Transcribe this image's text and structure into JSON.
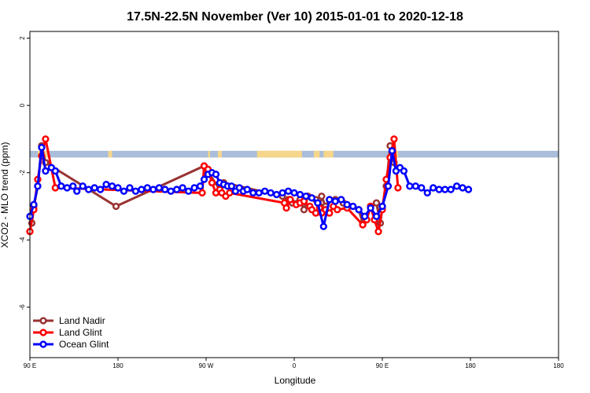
{
  "chart_data": {
    "type": "line",
    "title": "17.5N-22.5N November (Ver 10)   2015-01-01 to 2020-12-18",
    "xlabel": "Longitude",
    "ylabel": "XCO2 - MLO trend (ppm)",
    "xlim": [
      -90,
      180
    ],
    "ylim": [
      -7.5,
      2.2
    ],
    "x_ticks": [
      {
        "value": -90,
        "label": "90 E"
      },
      {
        "value": -45,
        "label": "180"
      },
      {
        "value": 0,
        "label": "90 W"
      },
      {
        "value": 45,
        "label": "0"
      },
      {
        "value": 90,
        "label": "90 E"
      },
      {
        "value": 135,
        "label": "180"
      }
    ],
    "y_ticks": [
      2,
      0,
      -2,
      -4,
      -6
    ],
    "legend_position": "bottom-left",
    "land_mask_band": {
      "y_range": [
        -1.55,
        -1.35
      ],
      "ocean_color": "#aabdda",
      "land_color": "#f5d68a",
      "land_x_ranges": [
        [
          -86,
          -80
        ],
        [
          -50,
          -48
        ],
        [
          1,
          2
        ],
        [
          6,
          8
        ],
        [
          26,
          49
        ],
        [
          55,
          58
        ],
        [
          60,
          65
        ],
        [
          94,
          98
        ]
      ]
    },
    "series": [
      {
        "name": "Land Nadir",
        "color": "#993333",
        "points": [
          [
            -89,
            -3.5
          ],
          [
            -88,
            -3.0
          ],
          [
            -86,
            -2.4
          ],
          [
            -84,
            -1.2
          ],
          [
            -82,
            -1.7
          ],
          [
            -46,
            -3.0
          ],
          [
            -1,
            -1.8
          ],
          [
            0,
            -1.9
          ],
          [
            7,
            -2.5
          ],
          [
            9,
            -2.3
          ],
          [
            39,
            -2.7
          ],
          [
            42,
            -2.8
          ],
          [
            44,
            -2.9
          ],
          [
            48,
            -2.8
          ],
          [
            50,
            -3.1
          ],
          [
            52,
            -2.7
          ],
          [
            56,
            -2.8
          ],
          [
            58,
            -3.0
          ],
          [
            59,
            -2.7
          ],
          [
            61,
            -3.0
          ],
          [
            63,
            -2.8
          ],
          [
            66,
            -2.8
          ],
          [
            70,
            -2.9
          ],
          [
            75,
            -3.0
          ],
          [
            78,
            -3.1
          ],
          [
            80,
            -3.5
          ],
          [
            84,
            -3.0
          ],
          [
            87,
            -2.9
          ],
          [
            89,
            -3.5
          ],
          [
            90,
            -3.0
          ],
          [
            92,
            -2.4
          ],
          [
            94,
            -1.2
          ],
          [
            96,
            -1.7
          ]
        ]
      },
      {
        "name": "Land Glint",
        "color": "#ff0000",
        "points": [
          [
            -90,
            -3.75
          ],
          [
            -88,
            -3.1
          ],
          [
            -86,
            -2.2
          ],
          [
            -84,
            -1.5
          ],
          [
            -82,
            -1.0
          ],
          [
            -77,
            -2.45
          ],
          [
            -2,
            -2.6
          ],
          [
            -1,
            -1.8
          ],
          [
            1,
            -1.9
          ],
          [
            3,
            -2.3
          ],
          [
            5,
            -2.6
          ],
          [
            7,
            -2.5
          ],
          [
            8,
            -2.6
          ],
          [
            10,
            -2.7
          ],
          [
            12,
            -2.6
          ],
          [
            40,
            -2.9
          ],
          [
            41,
            -3.05
          ],
          [
            43,
            -2.8
          ],
          [
            46,
            -2.95
          ],
          [
            48,
            -2.9
          ],
          [
            50,
            -2.85
          ],
          [
            53,
            -3.0
          ],
          [
            54,
            -3.1
          ],
          [
            56,
            -3.2
          ],
          [
            58,
            -3.05
          ],
          [
            59,
            -3.2
          ],
          [
            61,
            -3.1
          ],
          [
            63,
            -3.2
          ],
          [
            65,
            -3.0
          ],
          [
            67,
            -3.1
          ],
          [
            72,
            -3.05
          ],
          [
            80,
            -3.55
          ],
          [
            82,
            -3.4
          ],
          [
            84,
            -3.0
          ],
          [
            86,
            -3.4
          ],
          [
            88,
            -3.75
          ],
          [
            90,
            -3.1
          ],
          [
            92,
            -2.2
          ],
          [
            94,
            -1.55
          ],
          [
            96,
            -1.0
          ],
          [
            98,
            -2.45
          ]
        ]
      },
      {
        "name": "Ocean Glint",
        "color": "#0000ff",
        "points": [
          [
            -90,
            -3.3
          ],
          [
            -88,
            -2.95
          ],
          [
            -86,
            -2.4
          ],
          [
            -84,
            -1.25
          ],
          [
            -82,
            -1.95
          ],
          [
            -79,
            -1.85
          ],
          [
            -77,
            -1.95
          ],
          [
            -74,
            -2.4
          ],
          [
            -71,
            -2.45
          ],
          [
            -68,
            -2.4
          ],
          [
            -66,
            -2.55
          ],
          [
            -63,
            -2.4
          ],
          [
            -60,
            -2.5
          ],
          [
            -57,
            -2.45
          ],
          [
            -54,
            -2.5
          ],
          [
            -51,
            -2.35
          ],
          [
            -48,
            -2.4
          ],
          [
            -45,
            -2.45
          ],
          [
            -42,
            -2.55
          ],
          [
            -39,
            -2.45
          ],
          [
            -36,
            -2.55
          ],
          [
            -33,
            -2.5
          ],
          [
            -30,
            -2.45
          ],
          [
            -27,
            -2.5
          ],
          [
            -24,
            -2.45
          ],
          [
            -21,
            -2.5
          ],
          [
            -18,
            -2.55
          ],
          [
            -15,
            -2.5
          ],
          [
            -12,
            -2.45
          ],
          [
            -9,
            -2.55
          ],
          [
            -6,
            -2.45
          ],
          [
            -3,
            -2.4
          ],
          [
            -1,
            -2.2
          ],
          [
            1,
            -2.05
          ],
          [
            3,
            -2.0
          ],
          [
            5,
            -2.05
          ],
          [
            7,
            -2.3
          ],
          [
            9,
            -2.35
          ],
          [
            11,
            -2.4
          ],
          [
            13,
            -2.4
          ],
          [
            15,
            -2.55
          ],
          [
            17,
            -2.45
          ],
          [
            19,
            -2.55
          ],
          [
            21,
            -2.5
          ],
          [
            24,
            -2.6
          ],
          [
            27,
            -2.6
          ],
          [
            30,
            -2.55
          ],
          [
            33,
            -2.6
          ],
          [
            36,
            -2.65
          ],
          [
            39,
            -2.6
          ],
          [
            42,
            -2.55
          ],
          [
            45,
            -2.6
          ],
          [
            48,
            -2.65
          ],
          [
            51,
            -2.7
          ],
          [
            54,
            -2.75
          ],
          [
            57,
            -2.9
          ],
          [
            60,
            -3.6
          ],
          [
            63,
            -2.8
          ],
          [
            66,
            -2.85
          ],
          [
            69,
            -2.8
          ],
          [
            72,
            -2.95
          ],
          [
            75,
            -3.0
          ],
          [
            78,
            -3.1
          ],
          [
            81,
            -3.3
          ],
          [
            84,
            -3.05
          ],
          [
            87,
            -3.3
          ],
          [
            90,
            -3.0
          ],
          [
            93,
            -2.4
          ],
          [
            95,
            -1.35
          ],
          [
            97,
            -1.95
          ],
          [
            99,
            -1.85
          ],
          [
            101,
            -1.95
          ],
          [
            104,
            -2.4
          ],
          [
            107,
            -2.4
          ],
          [
            110,
            -2.45
          ],
          [
            113,
            -2.6
          ],
          [
            116,
            -2.45
          ],
          [
            119,
            -2.5
          ],
          [
            122,
            -2.5
          ],
          [
            125,
            -2.5
          ],
          [
            128,
            -2.4
          ],
          [
            131,
            -2.45
          ],
          [
            134,
            -2.5
          ]
        ]
      }
    ]
  }
}
